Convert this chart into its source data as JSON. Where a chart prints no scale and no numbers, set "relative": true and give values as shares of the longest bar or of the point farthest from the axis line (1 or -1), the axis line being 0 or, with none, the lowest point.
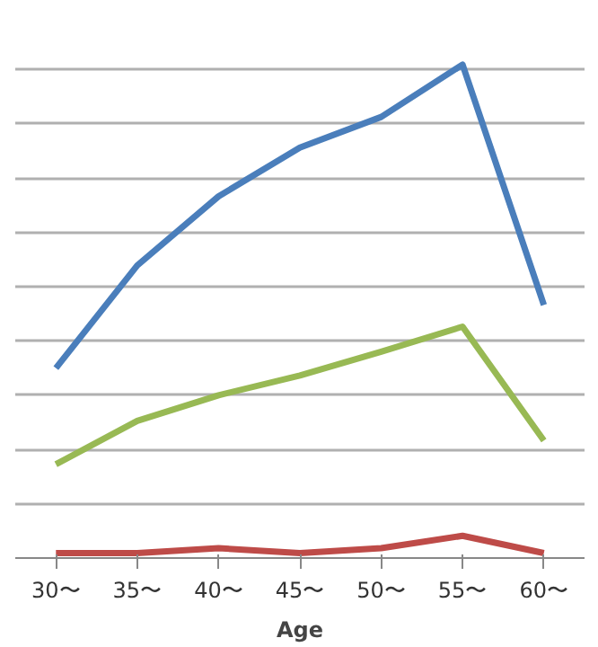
{
  "chart_data": {
    "type": "line",
    "relative": true,
    "xlabel": "Age",
    "categories": [
      "30〜",
      "35〜",
      "40〜",
      "45〜",
      "50〜",
      "55〜",
      "60〜"
    ],
    "series": [
      {
        "color": "#4a7ebb",
        "values": [
          0.385,
          0.593,
          0.733,
          0.832,
          0.894,
          1,
          0.513
        ]
      },
      {
        "color": "#98b954",
        "values": [
          0.19,
          0.278,
          0.33,
          0.37,
          0.418,
          0.469,
          0.238
        ]
      },
      {
        "color": "#be4b48",
        "values": [
          0.01,
          0.01,
          0.02,
          0.01,
          0.02,
          0.045,
          0.01
        ]
      }
    ],
    "grid": "y",
    "marker": "none",
    "line_style": "solid"
  }
}
